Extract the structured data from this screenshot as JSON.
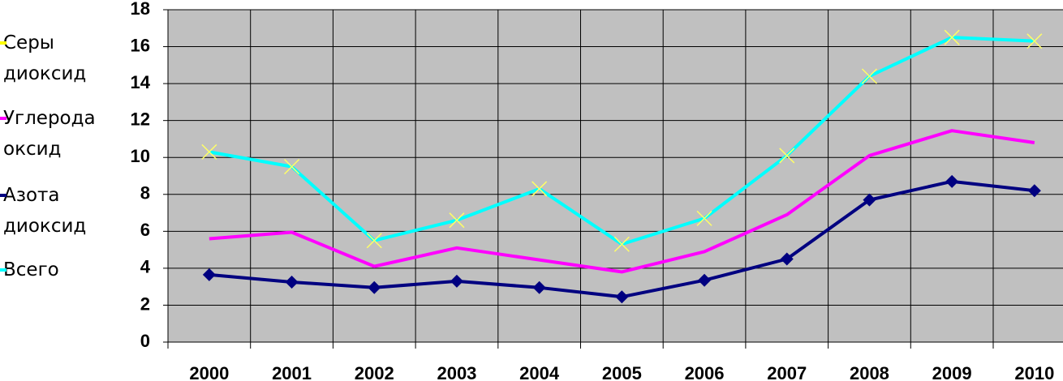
{
  "chart_data": {
    "type": "line",
    "categories": [
      "2000",
      "2001",
      "2002",
      "2003",
      "2004",
      "2005",
      "2006",
      "2007",
      "2008",
      "2009",
      "2010"
    ],
    "series": [
      {
        "name": "Серы диоксид",
        "color": "#ffff00",
        "marker": "triangle",
        "values": [
          null,
          null,
          null,
          null,
          null,
          null,
          null,
          null,
          null,
          null,
          null
        ]
      },
      {
        "name": "Углерода оксид",
        "color": "#ff00ff",
        "marker": "none",
        "values": [
          5.6,
          5.95,
          4.1,
          5.1,
          4.45,
          3.8,
          4.9,
          6.9,
          10.1,
          11.45,
          10.8
        ]
      },
      {
        "name": "Азота диоксид",
        "color": "#000080",
        "marker": "diamond",
        "values": [
          3.65,
          3.25,
          2.95,
          3.3,
          2.95,
          2.45,
          3.35,
          4.5,
          7.7,
          8.7,
          8.2
        ]
      },
      {
        "name": "Всего",
        "color": "#00ffff",
        "marker": "x",
        "values": [
          10.3,
          9.5,
          5.5,
          6.6,
          8.3,
          5.3,
          6.7,
          10.1,
          14.4,
          16.5,
          16.3
        ]
      }
    ],
    "ylim": [
      0,
      18
    ],
    "yticks": [
      0,
      2,
      4,
      6,
      8,
      10,
      12,
      14,
      16,
      18
    ],
    "grid": true,
    "legend": "left"
  }
}
